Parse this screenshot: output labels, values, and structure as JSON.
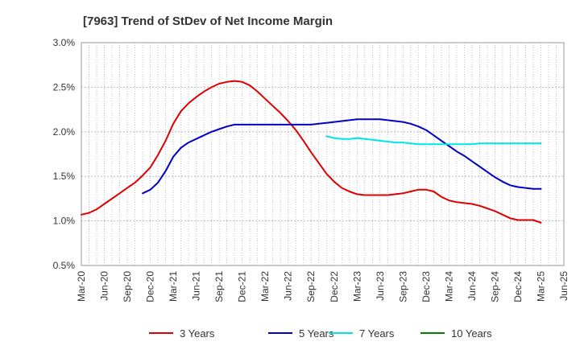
{
  "chart_data": {
    "type": "line",
    "title": "[7963]  Trend of StDev of Net Income Margin",
    "xlabel": "",
    "ylabel": "",
    "x_ticks": [
      "Mar-20",
      "Jun-20",
      "Sep-20",
      "Dec-20",
      "Mar-21",
      "Jun-21",
      "Sep-21",
      "Dec-21",
      "Mar-22",
      "Jun-22",
      "Sep-22",
      "Dec-22",
      "Mar-23",
      "Jun-23",
      "Sep-23",
      "Dec-23",
      "Mar-24",
      "Jun-24",
      "Sep-24",
      "Dec-24",
      "Mar-25",
      "Jun-25"
    ],
    "y_ticks": [
      "0.5%",
      "1.0%",
      "1.5%",
      "2.0%",
      "2.5%",
      "3.0%"
    ],
    "ylim": [
      0.5,
      3.0
    ],
    "grid": true,
    "legend_position": "bottom",
    "series": [
      {
        "name": "3 Years",
        "color": "#e00000",
        "x": [
          "Mar-20",
          "Apr-20",
          "May-20",
          "Jun-20",
          "Jul-20",
          "Aug-20",
          "Sep-20",
          "Oct-20",
          "Nov-20",
          "Dec-20",
          "Jan-21",
          "Feb-21",
          "Mar-21",
          "Apr-21",
          "May-21",
          "Jun-21",
          "Jul-21",
          "Aug-21",
          "Sep-21",
          "Oct-21",
          "Nov-21",
          "Dec-21",
          "Jan-22",
          "Feb-22",
          "Mar-22",
          "Apr-22",
          "May-22",
          "Jun-22",
          "Jul-22",
          "Aug-22",
          "Sep-22",
          "Oct-22",
          "Nov-22",
          "Dec-22",
          "Jan-23",
          "Feb-23",
          "Mar-23",
          "Apr-23",
          "May-23",
          "Jun-23",
          "Jul-23",
          "Aug-23",
          "Sep-23",
          "Oct-23",
          "Nov-23",
          "Dec-23",
          "Jan-24",
          "Feb-24",
          "Mar-24",
          "Apr-24",
          "May-24",
          "Jun-24",
          "Jul-24",
          "Aug-24",
          "Sep-24",
          "Oct-24",
          "Nov-24",
          "Dec-24",
          "Jan-25",
          "Feb-25",
          "Mar-25"
        ],
        "values": [
          1.07,
          1.09,
          1.13,
          1.19,
          1.25,
          1.31,
          1.37,
          1.43,
          1.51,
          1.6,
          1.74,
          1.9,
          2.09,
          2.23,
          2.32,
          2.39,
          2.45,
          2.5,
          2.54,
          2.56,
          2.57,
          2.56,
          2.52,
          2.45,
          2.37,
          2.29,
          2.21,
          2.12,
          2.02,
          1.9,
          1.77,
          1.65,
          1.53,
          1.44,
          1.37,
          1.33,
          1.3,
          1.29,
          1.29,
          1.29,
          1.29,
          1.3,
          1.31,
          1.33,
          1.35,
          1.35,
          1.33,
          1.27,
          1.23,
          1.21,
          1.2,
          1.19,
          1.17,
          1.14,
          1.11,
          1.07,
          1.03,
          1.01,
          1.01,
          1.01,
          0.98
        ]
      },
      {
        "name": "5 Years",
        "color": "#0000c8",
        "x": [
          "Mar-20",
          "Apr-20",
          "May-20",
          "Jun-20",
          "Jul-20",
          "Aug-20",
          "Sep-20",
          "Oct-20",
          "Nov-20",
          "Dec-20",
          "Jan-21",
          "Feb-21",
          "Mar-21",
          "Apr-21",
          "May-21",
          "Jun-21",
          "Jul-21",
          "Aug-21",
          "Sep-21",
          "Oct-21",
          "Nov-21",
          "Dec-21",
          "Jan-22",
          "Feb-22",
          "Mar-22",
          "Apr-22",
          "May-22",
          "Jun-22",
          "Jul-22",
          "Aug-22",
          "Sep-22",
          "Oct-22",
          "Nov-22",
          "Dec-22",
          "Jan-23",
          "Feb-23",
          "Mar-23",
          "Apr-23",
          "May-23",
          "Jun-23",
          "Jul-23",
          "Aug-23",
          "Sep-23",
          "Oct-23",
          "Nov-23",
          "Dec-23",
          "Jan-24",
          "Feb-24",
          "Mar-24",
          "Apr-24",
          "May-24",
          "Jun-24",
          "Jul-24",
          "Aug-24",
          "Sep-24",
          "Oct-24",
          "Nov-24",
          "Dec-24",
          "Jan-25",
          "Feb-25",
          "Mar-25"
        ],
        "values": [
          null,
          null,
          null,
          null,
          null,
          null,
          null,
          null,
          1.31,
          1.35,
          1.43,
          1.56,
          1.72,
          1.82,
          1.88,
          1.92,
          1.96,
          2.0,
          2.03,
          2.06,
          2.08,
          2.08,
          2.08,
          2.08,
          2.08,
          2.08,
          2.08,
          2.08,
          2.08,
          2.08,
          2.08,
          2.09,
          2.1,
          2.11,
          2.12,
          2.13,
          2.14,
          2.14,
          2.14,
          2.14,
          2.13,
          2.12,
          2.11,
          2.09,
          2.06,
          2.02,
          1.96,
          1.9,
          1.84,
          1.78,
          1.73,
          1.67,
          1.61,
          1.55,
          1.49,
          1.44,
          1.4,
          1.38,
          1.37,
          1.36,
          1.36
        ]
      },
      {
        "name": "7 Years",
        "color": "#00e5e5",
        "x": [
          "Mar-20",
          "Apr-20",
          "May-20",
          "Jun-20",
          "Jul-20",
          "Aug-20",
          "Sep-20",
          "Oct-20",
          "Nov-20",
          "Dec-20",
          "Jan-21",
          "Feb-21",
          "Mar-21",
          "Apr-21",
          "May-21",
          "Jun-21",
          "Jul-21",
          "Aug-21",
          "Sep-21",
          "Oct-21",
          "Nov-21",
          "Dec-21",
          "Jan-22",
          "Feb-22",
          "Mar-22",
          "Apr-22",
          "May-22",
          "Jun-22",
          "Jul-22",
          "Aug-22",
          "Sep-22",
          "Oct-22",
          "Nov-22",
          "Dec-22",
          "Jan-23",
          "Feb-23",
          "Mar-23",
          "Apr-23",
          "May-23",
          "Jun-23",
          "Jul-23",
          "Aug-23",
          "Sep-23",
          "Oct-23",
          "Nov-23",
          "Dec-23",
          "Jan-24",
          "Feb-24",
          "Mar-24",
          "Apr-24",
          "May-24",
          "Jun-24",
          "Jul-24",
          "Aug-24",
          "Sep-24",
          "Oct-24",
          "Nov-24",
          "Dec-24",
          "Jan-25",
          "Feb-25",
          "Mar-25"
        ],
        "values": [
          null,
          null,
          null,
          null,
          null,
          null,
          null,
          null,
          null,
          null,
          null,
          null,
          null,
          null,
          null,
          null,
          null,
          null,
          null,
          null,
          null,
          null,
          null,
          null,
          null,
          null,
          null,
          null,
          null,
          null,
          null,
          null,
          1.95,
          1.93,
          1.92,
          1.92,
          1.93,
          1.92,
          1.91,
          1.9,
          1.89,
          1.88,
          1.88,
          1.87,
          1.86,
          1.86,
          1.86,
          1.86,
          1.86,
          1.86,
          1.86,
          1.86,
          1.87,
          1.87,
          1.87,
          1.87,
          1.87,
          1.87,
          1.87,
          1.87,
          1.87
        ]
      },
      {
        "name": "10 Years",
        "color": "#008000",
        "x": [],
        "values": []
      }
    ]
  }
}
